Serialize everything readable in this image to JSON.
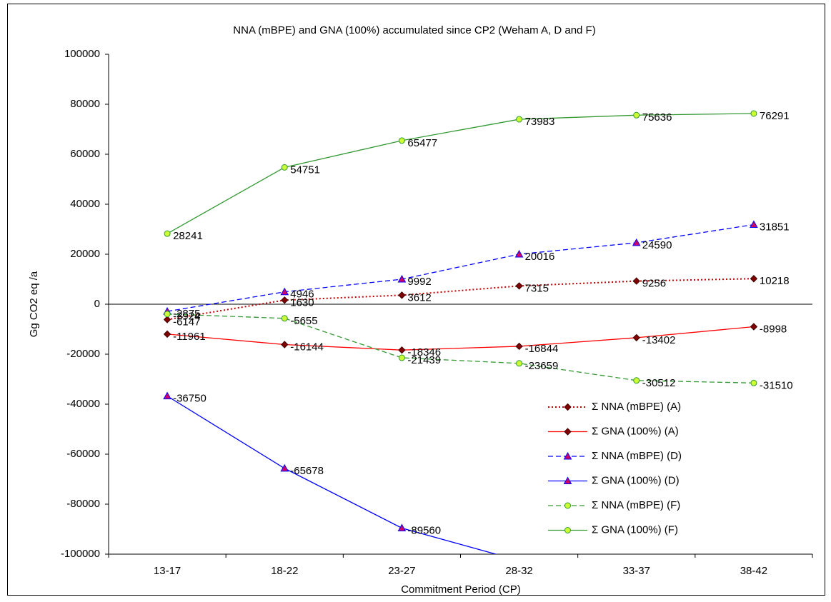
{
  "chart_data": {
    "type": "line",
    "title": "NNA (mBPE) and GNA (100%) accumulated since CP2 (Weham A, D and F)",
    "x_label": "Commitment Period (CP)",
    "y_label": "Gg CO2 eq /a",
    "categories": [
      "13-17",
      "18-22",
      "23-27",
      "28-32",
      "33-37",
      "38-42"
    ],
    "ylim": [
      -100000,
      100000
    ],
    "yticks": [
      -100000,
      -80000,
      -60000,
      -40000,
      -20000,
      0,
      20000,
      40000,
      60000,
      80000,
      100000
    ],
    "negative_label_color": "#ff0000",
    "series": [
      {
        "name": "Σ NNA (mBPE) (A)",
        "color": "#c00000",
        "dash": "dotted",
        "marker": "diamond",
        "marker_fill": "#800000",
        "values": [
          -6147,
          1630,
          3612,
          7315,
          9256,
          10218
        ]
      },
      {
        "name": "Σ GNA (100%) (A)",
        "color": "#ff0000",
        "dash": "solid",
        "marker": "diamond",
        "marker_fill": "#800000",
        "values": [
          -11961,
          -16144,
          -18346,
          -16844,
          -13402,
          -8998
        ]
      },
      {
        "name": "Σ NNA (mBPE) (D)",
        "color": "#0000ff",
        "dash": "dashed",
        "marker": "triangle",
        "marker_fill": "#cc0066",
        "values": [
          -2875,
          4946,
          9992,
          20016,
          24590,
          31851
        ]
      },
      {
        "name": "Σ GNA (100%) (D)",
        "color": "#0000ff",
        "dash": "solid",
        "marker": "triangle",
        "marker_fill": "#cc0066",
        "values": [
          -36750,
          -65678,
          -89560,
          -102600,
          null,
          null
        ]
      },
      {
        "name": "Σ NNA (mBPE) (F)",
        "color": "#339933",
        "dash": "dashed",
        "marker": "circle",
        "marker_fill": "#ccff33",
        "values": [
          -3924,
          -5655,
          -21439,
          -23659,
          -30512,
          -31510
        ]
      },
      {
        "name": "Σ GNA (100%) (F)",
        "color": "#339933",
        "dash": "solid",
        "marker": "circle",
        "marker_fill": "#ccff33",
        "values": [
          28241,
          54751,
          65477,
          73983,
          75636,
          76291
        ]
      }
    ]
  }
}
